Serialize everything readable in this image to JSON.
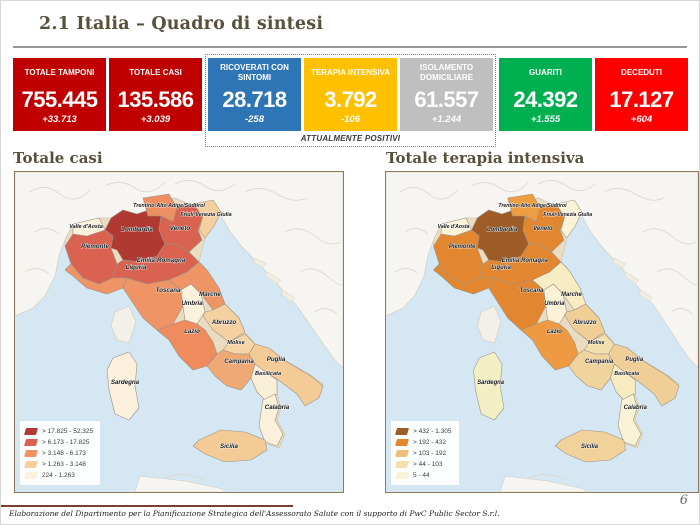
{
  "slide": {
    "title": "2.1 Italia – Quadro di sintesi",
    "page_number": "6",
    "footer": "Elaborazione del Dipartimento per la Pianificazione Strategica dell'Assessorato Salute con il supporto di PwC Public Sector S.r.l."
  },
  "kpis": {
    "caption": "ATTUALMENTE POSITIVI",
    "boxes": [
      {
        "label": "TOTALE TAMPONI",
        "value": "755.445",
        "delta": "+33.713",
        "color": "#C00000"
      },
      {
        "label": "TOTALE CASI",
        "value": "135.586",
        "delta": "+3.039",
        "color": "#C00000"
      },
      {
        "label": "RICOVERATI CON SINTOMI",
        "value": "28.718",
        "delta": "-258",
        "color": "#2E75B6"
      },
      {
        "label": "TERAPIA INTENSIVA",
        "value": "3.792",
        "delta": "-106",
        "color": "#FFC000"
      },
      {
        "label": "ISOLAMENTO DOMICILIARE",
        "value": "61.557",
        "delta": "+1.244",
        "color": "#BFBFBF"
      },
      {
        "label": "GUARITI",
        "value": "24.392",
        "delta": "+1.555",
        "color": "#00B050"
      },
      {
        "label": "DECEDUTI",
        "value": "17.127",
        "delta": "+604",
        "color": "#FF0000"
      }
    ]
  },
  "region_names": {
    "valle": "Valle d'Aosta",
    "piemonte": "Piemonte",
    "lombardia": "Lombardia",
    "trentino": "Trentino-Alto Adige/Südtirol",
    "veneto": "Veneto",
    "friuli": "Friuli-Venezia Giulia",
    "emilia": "Emilia-Romagna",
    "liguria": "Liguria",
    "toscana": "Toscana",
    "marche": "Marche",
    "umbria": "Umbria",
    "lazio": "Lazio",
    "abruzzo": "Abruzzo",
    "molise": "Molise",
    "campania": "Campania",
    "puglia": "Puglia",
    "basilicata": "Basilicata",
    "calabria": "Calabria",
    "sicilia": "Sicilia",
    "sardegna": "Sardegna"
  },
  "maps": [
    {
      "title": "Totale casi",
      "legend": [
        {
          "label": "> 17.825 - 52.325",
          "color": "#B03A31"
        },
        {
          "label": "> 6.173 - 17.825",
          "color": "#D96350"
        },
        {
          "label": "> 3.148 - 6.173",
          "color": "#EF9465"
        },
        {
          "label": "> 1.263 - 3.148",
          "color": "#F6CF9E"
        },
        {
          "label": "224 - 1.263",
          "color": "#FBF1DC"
        }
      ],
      "region_colors": {
        "lombardia": "#B03A31",
        "piemonte": "#D96350",
        "veneto": "#D96350",
        "emilia": "#D96350",
        "trentino": "#EE8F62",
        "liguria": "#EF9465",
        "toscana": "#EF9465",
        "marche": "#EF9465",
        "lazio": "#F08B5E",
        "campania": "#F0A975",
        "friuli": "#F6CF9E",
        "abruzzo": "#F5D0A0",
        "molise": "#F5D4A6",
        "puglia": "#F4CB97",
        "sicilia": "#F4CA96",
        "valle": "#FBF1DC",
        "umbria": "#FBF1DC",
        "basilicata": "#F9EFD8",
        "calabria": "#FAF0DC",
        "sardegna": "#FAF0DC"
      }
    },
    {
      "title": "Totale terapia intensiva",
      "legend": [
        {
          "label": "> 432 - 1.305",
          "color": "#9E5C26"
        },
        {
          "label": "> 192 - 432",
          "color": "#E2872F"
        },
        {
          "label": "> 103 - 192",
          "color": "#EDBE7C"
        },
        {
          "label": "> 44 - 103",
          "color": "#F4E0AC"
        },
        {
          "label": "5 - 44",
          "color": "#FAF3D8"
        }
      ],
      "region_colors": {
        "lombardia": "#9E5C26",
        "piemonte": "#E2872F",
        "veneto": "#E2872F",
        "emilia": "#E2872F",
        "toscana": "#E2872F",
        "liguria": "#E2872F",
        "trentino": "#EE9D41",
        "lazio": "#ED9A43",
        "abruzzo": "#F0CE96",
        "campania": "#F0D49E",
        "puglia": "#EFCF97",
        "sicilia": "#F0D29A",
        "molise": "#F3DFAC",
        "marche": "#F8ECC2",
        "basilicata": "#F7EBC0",
        "valle": "#FAF3D8",
        "friuli": "#FAF3D8",
        "umbria": "#FAF3D8",
        "calabria": "#F9F2D4",
        "sardegna": "#F2EFC5"
      }
    }
  ]
}
